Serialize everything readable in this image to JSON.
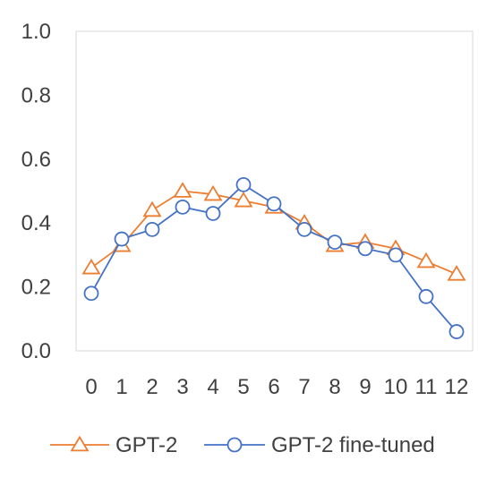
{
  "chart_data": {
    "type": "line",
    "x": [
      0,
      1,
      2,
      3,
      4,
      5,
      6,
      7,
      8,
      9,
      10,
      11,
      12
    ],
    "xticks": [
      "0",
      "1",
      "2",
      "3",
      "4",
      "5",
      "6",
      "7",
      "8",
      "9",
      "10",
      "11",
      "12"
    ],
    "ylim": [
      0.0,
      1.0
    ],
    "yticks": [
      "0.0",
      "0.2",
      "0.4",
      "0.6",
      "0.8",
      "1.0"
    ],
    "grid": false,
    "legend_position": "bottom",
    "series": [
      {
        "name": "GPT-2",
        "marker": "triangle",
        "color": "#ED7D31",
        "values": [
          0.26,
          0.33,
          0.44,
          0.5,
          0.49,
          0.47,
          0.45,
          0.4,
          0.33,
          0.34,
          0.32,
          0.28,
          0.24
        ]
      },
      {
        "name": "GPT-2  fine-tuned",
        "marker": "circle",
        "color": "#4472C4",
        "values": [
          0.18,
          0.35,
          0.38,
          0.45,
          0.43,
          0.52,
          0.46,
          0.38,
          0.34,
          0.32,
          0.3,
          0.17,
          0.06
        ]
      }
    ]
  }
}
